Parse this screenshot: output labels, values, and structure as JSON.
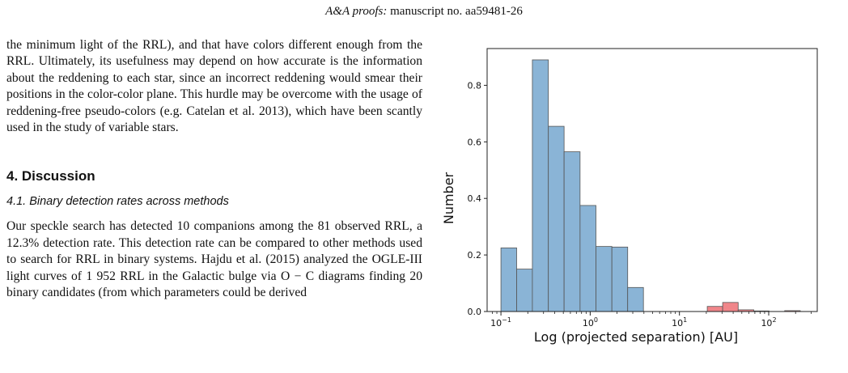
{
  "running_head": {
    "journal": "A&A proofs:",
    "manuscript": " manuscript no. aa59481-26"
  },
  "body": {
    "paragraph_1": "the minimum light of the RRL), and that have colors different enough from the RRL. Ultimately, its usefulness may depend on how accurate is the information about the reddening to each star, since an incorrect reddening would smear their positions in the color-color plane. This hurdle may be overcome with the usage of reddening-free pseudo-colors (e.g. Catelan et al. 2013), which have been scantly used in the study of variable stars.",
    "section_heading": "4. Discussion",
    "subsection_heading": "4.1. Binary detection rates across methods",
    "paragraph_2": "Our speckle search has detected 10 companions among the 81 observed RRL, a 12.3% detection rate. This detection rate can be compared to other methods used to search for RRL in binary systems. Hajdu et al. (2015) analyzed the OGLE-III light curves of 1 952 RRL in the Galactic bulge via O − C diagrams finding 20 binary candidates (from which parameters could be derived"
  },
  "chart_data": {
    "type": "bar",
    "xlabel": "Log (projected separation) [AU]",
    "ylabel": "Number",
    "xscale": "log",
    "xlim": [
      0.07,
      350
    ],
    "ylim": [
      0,
      0.93
    ],
    "xticks": [
      {
        "value": 0.1,
        "base": "10",
        "exp": "−1"
      },
      {
        "value": 1,
        "base": "10",
        "exp": "0"
      },
      {
        "value": 10,
        "base": "10",
        "exp": "1"
      },
      {
        "value": 100,
        "base": "10",
        "exp": "2"
      }
    ],
    "yticks": [
      "0.0",
      "0.2",
      "0.4",
      "0.6",
      "0.8"
    ],
    "grid": false,
    "series": [
      {
        "color": "#8ab4d6",
        "bins": [
          {
            "x0": 0.1,
            "x1": 0.15,
            "value": 0.225
          },
          {
            "x0": 0.15,
            "x1": 0.225,
            "value": 0.15
          },
          {
            "x0": 0.225,
            "x1": 0.34,
            "value": 0.89
          },
          {
            "x0": 0.34,
            "x1": 0.51,
            "value": 0.655
          },
          {
            "x0": 0.51,
            "x1": 0.77,
            "value": 0.565
          },
          {
            "x0": 0.77,
            "x1": 1.16,
            "value": 0.375
          },
          {
            "x0": 1.16,
            "x1": 1.75,
            "value": 0.23
          },
          {
            "x0": 1.75,
            "x1": 2.63,
            "value": 0.228
          },
          {
            "x0": 2.63,
            "x1": 3.95,
            "value": 0.085
          }
        ]
      },
      {
        "color": "#f0868a",
        "bins": [
          {
            "x0": 20.5,
            "x1": 30.5,
            "value": 0.018
          },
          {
            "x0": 30.5,
            "x1": 45.5,
            "value": 0.032
          },
          {
            "x0": 45.5,
            "x1": 68,
            "value": 0.006
          },
          {
            "x0": 68,
            "x1": 101,
            "value": 0.002
          },
          {
            "x0": 151,
            "x1": 226,
            "value": 0.003
          }
        ]
      }
    ]
  }
}
